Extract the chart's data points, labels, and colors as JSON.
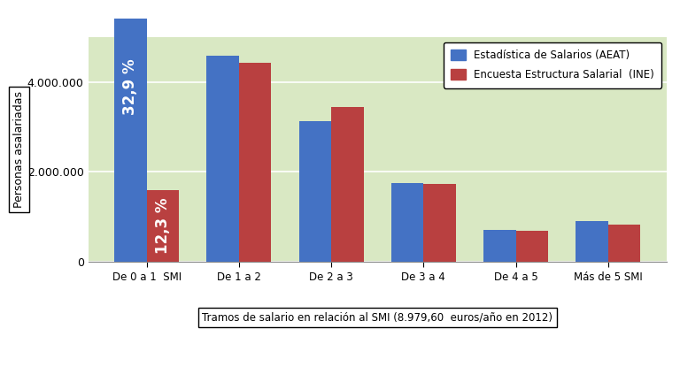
{
  "categories": [
    "De 0 a 1  SMI",
    "De 1 a 2",
    "De 2 a 3",
    "De 3 a 4",
    "De 4 a 5",
    "Más de 5 SMI"
  ],
  "aeat_values": [
    5400000,
    4580000,
    3130000,
    1760000,
    720000,
    900000
  ],
  "ine_values": [
    1600000,
    4430000,
    3440000,
    1730000,
    700000,
    820000
  ],
  "bar_color_aeat": "#4472C4",
  "bar_color_ine": "#B94040",
  "bg_color": "#D9E8C3",
  "outer_bg": "#FFFFFF",
  "ylabel": "Personas asalariadas",
  "xlabel": "Tramos de salario en relación al SMI (8.979,60  euros/año en 2012)",
  "legend_aeat": "Estadística de Salarios (AEAT)",
  "legend_ine": "Encuesta Estructura Salarial  (INE)",
  "annotation_top": "32,9 %",
  "annotation_bottom": "12,3 %",
  "ylim": [
    0,
    5000000
  ],
  "yticks": [
    0,
    2000000,
    4000000
  ],
  "ytick_labels": [
    "0",
    "2.000.000",
    "4.000.000"
  ]
}
